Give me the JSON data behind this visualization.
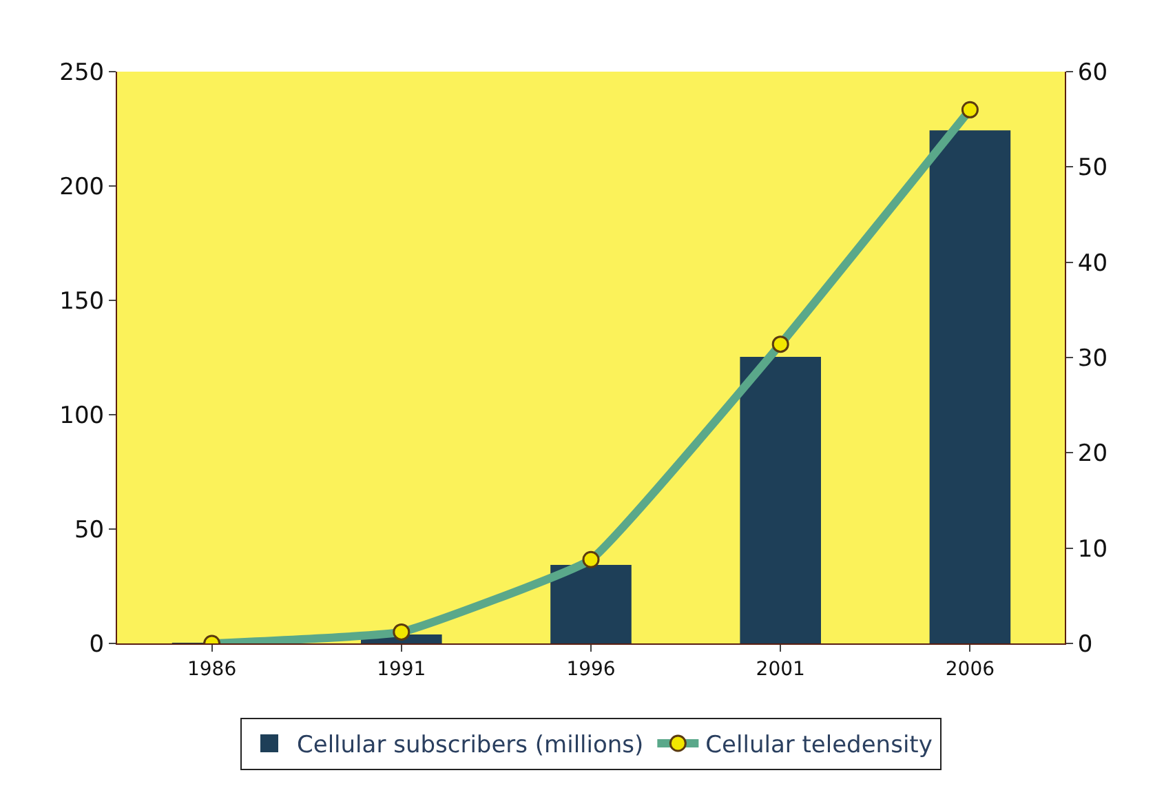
{
  "chart_data": {
    "type": "bar",
    "categories": [
      "1986",
      "1991",
      "1996",
      "2001",
      "2006"
    ],
    "series": [
      {
        "name": "Cellular subscribers (millions)",
        "color": "#1e3f58",
        "values": [
          0,
          3.6,
          34,
          125,
          224
        ]
      },
      {
        "name": "Cellular teledensity",
        "type": "line",
        "axis": "y2",
        "color": "#5aa88a",
        "marker": "circle",
        "values": [
          0,
          1.2,
          8.8,
          31.4,
          56
        ]
      }
    ],
    "ylim": [
      0,
      250
    ],
    "yticks": [
      0,
      50,
      100,
      150,
      200,
      250
    ],
    "y2lim": [
      0,
      60
    ],
    "y2ticks": [
      0,
      10,
      20,
      30,
      40,
      50,
      60
    ],
    "grid": false,
    "legend": "bottom"
  }
}
